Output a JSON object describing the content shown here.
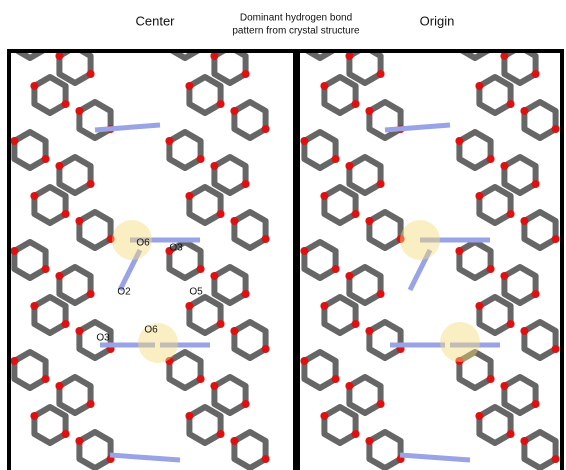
{
  "header": {
    "left_label": "Center",
    "title_lines": [
      "Dominant hydrogen bond",
      "pattern from crystal structure"
    ],
    "right_label": "Origin"
  },
  "atom_labels": [
    "O6",
    "O3",
    "O2",
    "O5",
    "O3",
    "O6"
  ]
}
